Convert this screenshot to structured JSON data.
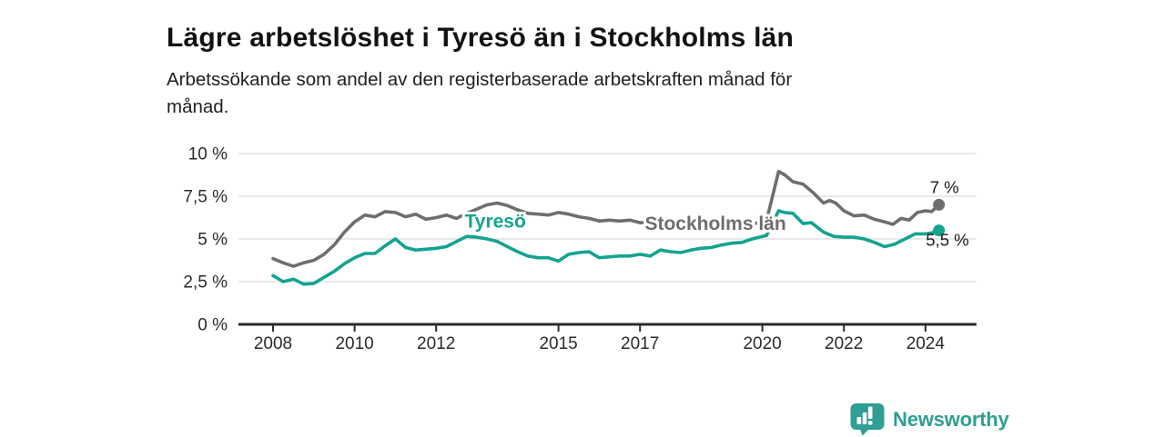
{
  "header": {
    "title": "Lägre arbetslöshet i Tyresö än i Stockholms län",
    "subtitle_lines": [
      "Arbetssökande som andel av den registerbaserade arbetskraften månad för",
      "månad."
    ]
  },
  "branding": {
    "name": "Newsworthy",
    "logo_icon": "bar-chart-badge-icon",
    "color": "#2f9e93"
  },
  "colors": {
    "tyreso": "#14a391",
    "stockholm": "#6e6e6e",
    "grid": "#dcdcdc",
    "axis": "#2b2b2b",
    "value_label": "#1a1a1a"
  },
  "chart_data": {
    "type": "line",
    "title": "Lägre arbetslöshet i Tyresö än i Stockholms län",
    "subtitle": "Arbetssökande som andel av den registerbaserade arbetskraften månad för månad.",
    "unit": "%",
    "legend_position": "inline-labels",
    "x_axis": {
      "range": [
        2007.15,
        2025.25
      ],
      "ticks": [
        2008,
        2010,
        2012,
        2015,
        2017,
        2020,
        2022,
        2024
      ],
      "labels": [
        "2008",
        "2010",
        "2012",
        "2015",
        "2017",
        "2020",
        "2022",
        "2024"
      ]
    },
    "y_axis": {
      "range": [
        0,
        10
      ],
      "gridlines": true,
      "ticks": [
        0,
        2.5,
        5,
        7.5,
        10
      ],
      "labels": [
        "0 %",
        "2,5 %",
        "5 %",
        "7,5 %",
        "10 %"
      ]
    },
    "series": [
      {
        "name": "Stockholms län",
        "color": "#6e6e6e",
        "end_label": "7 %",
        "end_value": 7.0,
        "end_label_offset": [
          22,
          -13
        ],
        "x": [
          2008.0,
          2008.25,
          2008.5,
          2008.75,
          2009.0,
          2009.25,
          2009.5,
          2009.75,
          2010.0,
          2010.25,
          2010.5,
          2010.75,
          2011.0,
          2011.25,
          2011.5,
          2011.75,
          2012.0,
          2012.25,
          2012.5,
          2012.75,
          2013.0,
          2013.25,
          2013.5,
          2013.75,
          2014.0,
          2014.25,
          2014.5,
          2014.75,
          2015.0,
          2015.25,
          2015.5,
          2015.75,
          2016.0,
          2016.25,
          2016.5,
          2016.75,
          2017.0,
          2017.25,
          2017.5,
          2017.75,
          2018.0,
          2018.25,
          2018.5,
          2018.75,
          2019.0,
          2019.25,
          2019.5,
          2019.75,
          2020.0,
          2020.1,
          2020.4,
          2020.55,
          2020.75,
          2021.0,
          2021.25,
          2021.5,
          2021.65,
          2021.8,
          2022.0,
          2022.25,
          2022.5,
          2022.75,
          2023.0,
          2023.2,
          2023.4,
          2023.6,
          2023.8,
          2024.0,
          2024.15,
          2024.33
        ],
        "y": [
          3.85,
          3.6,
          3.4,
          3.6,
          3.75,
          4.1,
          4.65,
          5.4,
          6.0,
          6.4,
          6.3,
          6.6,
          6.55,
          6.3,
          6.45,
          6.15,
          6.25,
          6.4,
          6.2,
          6.5,
          6.75,
          7.0,
          7.1,
          6.95,
          6.7,
          6.5,
          6.45,
          6.4,
          6.55,
          6.45,
          6.3,
          6.2,
          6.05,
          6.1,
          6.05,
          6.1,
          5.95,
          5.95,
          5.9,
          5.85,
          5.85,
          5.8,
          5.8,
          5.85,
          5.8,
          5.85,
          5.85,
          5.9,
          5.95,
          6.05,
          8.95,
          8.75,
          8.35,
          8.2,
          7.7,
          7.1,
          7.25,
          7.1,
          6.65,
          6.35,
          6.4,
          6.15,
          6.0,
          5.85,
          6.2,
          6.1,
          6.55,
          6.65,
          6.6,
          7.0
        ]
      },
      {
        "name": "Tyresö",
        "color": "#14a391",
        "end_label": "5,5 %",
        "end_value": 5.5,
        "end_label_offset": [
          33,
          17
        ],
        "x": [
          2008.0,
          2008.25,
          2008.5,
          2008.75,
          2009.0,
          2009.25,
          2009.5,
          2009.75,
          2010.0,
          2010.25,
          2010.5,
          2010.75,
          2011.0,
          2011.25,
          2011.5,
          2011.75,
          2012.0,
          2012.25,
          2012.5,
          2012.75,
          2013.0,
          2013.25,
          2013.5,
          2013.75,
          2014.0,
          2014.25,
          2014.5,
          2014.75,
          2015.0,
          2015.25,
          2015.5,
          2015.75,
          2016.0,
          2016.25,
          2016.5,
          2016.75,
          2017.0,
          2017.25,
          2017.5,
          2017.75,
          2018.0,
          2018.25,
          2018.5,
          2018.75,
          2019.0,
          2019.25,
          2019.5,
          2019.75,
          2020.0,
          2020.1,
          2020.4,
          2020.55,
          2020.75,
          2021.0,
          2021.2,
          2021.5,
          2021.75,
          2022.0,
          2022.25,
          2022.5,
          2022.75,
          2023.0,
          2023.25,
          2023.5,
          2023.75,
          2024.0,
          2024.15,
          2024.33
        ],
        "y": [
          2.85,
          2.5,
          2.65,
          2.35,
          2.4,
          2.75,
          3.1,
          3.55,
          3.9,
          4.15,
          4.15,
          4.6,
          5.0,
          4.5,
          4.35,
          4.4,
          4.45,
          4.55,
          4.85,
          5.15,
          5.1,
          5.0,
          4.85,
          4.55,
          4.25,
          4.0,
          3.9,
          3.9,
          3.7,
          4.1,
          4.2,
          4.25,
          3.9,
          3.95,
          4.0,
          4.0,
          4.1,
          4.0,
          4.35,
          4.25,
          4.2,
          4.35,
          4.45,
          4.5,
          4.65,
          4.75,
          4.8,
          5.0,
          5.15,
          5.2,
          6.65,
          6.55,
          6.5,
          5.9,
          5.95,
          5.4,
          5.15,
          5.1,
          5.1,
          5.0,
          4.8,
          4.55,
          4.7,
          5.0,
          5.3,
          5.3,
          5.35,
          5.5
        ]
      }
    ],
    "annotations": [
      {
        "text": "Tyresö",
        "x": 2013.45,
        "y": 6.05,
        "color": "#14a391"
      },
      {
        "text": "Stockholms län",
        "x": 2018.85,
        "y": 5.9,
        "color": "#6e6e6e"
      }
    ]
  }
}
